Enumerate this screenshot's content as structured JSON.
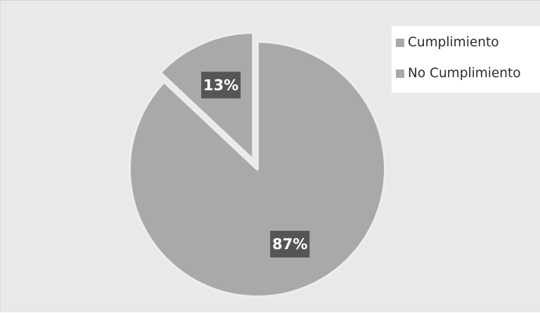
{
  "chart_data": {
    "type": "pie",
    "categories": [
      "Cumplimiento",
      "No Cumplimiento"
    ],
    "values": [
      87,
      13
    ],
    "data_labels": [
      "87%",
      "13%"
    ],
    "exploded": [
      false,
      true
    ],
    "colors": [
      "#a9a9a9",
      "#a9a9a9"
    ],
    "background": "#e9e9e9",
    "label_box_color": "#555555",
    "legend_position": "top-right"
  }
}
